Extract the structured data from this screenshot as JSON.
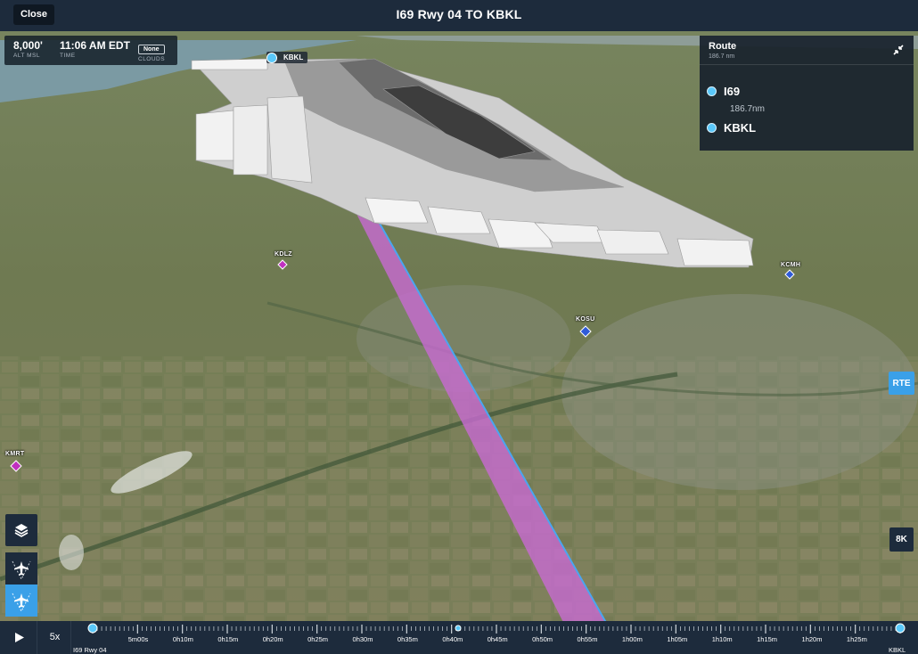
{
  "header": {
    "close_label": "Close",
    "title": "I69 Rwy 04 TO KBKL"
  },
  "info": {
    "altitude": "8,000'",
    "altitude_label": "ALT MSL",
    "time": "11:06 AM EDT",
    "time_label": "TIME",
    "clouds": "None",
    "clouds_label": "CLOUDS"
  },
  "route_panel": {
    "title": "Route",
    "total": "186.7 nm",
    "waypoints": [
      {
        "id": "I69"
      },
      {
        "id": "KBKL"
      }
    ],
    "leg_distance": "186.7nm"
  },
  "map": {
    "labels": {
      "kbkl": "KBKL",
      "kdlz": "KDLZ",
      "kcmh": "KCMH",
      "kosu": "KOSU",
      "kmrt": "KMRT"
    }
  },
  "controls": {
    "rte_label": "RTE",
    "res_label": "8K",
    "speed": "5x"
  },
  "timeline": {
    "ticks": [
      "5m00s",
      "0h10m",
      "0h15m",
      "0h20m",
      "0h25m",
      "0h30m",
      "0h35m",
      "0h40m",
      "0h45m",
      "0h50m",
      "0h55m",
      "1h00m",
      "1h05m",
      "1h10m",
      "1h15m",
      "1h20m",
      "1h25m"
    ],
    "start_label": "I69 Rwy 04",
    "end_label": "KBKL"
  },
  "colors": {
    "accent": "#3aa0e8",
    "panel": "#1d2b3c",
    "route": "#c86ad2",
    "waypoint": "#5ac8fa"
  },
  "icons": {
    "layers": "layers-icon",
    "view1": "airplane-view-icon",
    "view2": "airplane-follow-icon",
    "play": "play-icon",
    "collapse": "collapse-icon"
  }
}
